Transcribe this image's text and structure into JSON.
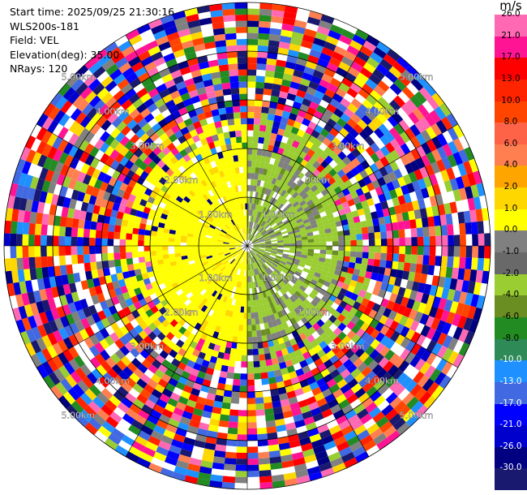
{
  "info": {
    "start_time": "Start time: 2025/09/25 21:30:16",
    "instrument": "WLS200s-181",
    "field": "Field: VEL",
    "elevation": "Elevation(deg): 35.00",
    "nrays": "NRays: 120"
  },
  "colorbar": {
    "unit": "m/s",
    "tick_labels": [
      "26.0",
      "21.0",
      "17.0",
      "13.0",
      "10.0",
      "8.0",
      "6.0",
      "4.0",
      "2.0",
      "1.0",
      "0.0",
      "-1.0",
      "-2.0",
      "-4.0",
      "-6.0",
      "-8.0",
      "-10.0",
      "-13.0",
      "-17.0",
      "-21.0",
      "-26.0",
      "-30.0"
    ],
    "colors": [
      "#ff69b4",
      "#ff1493",
      "#ff0000",
      "#ff2400",
      "#ff4500",
      "#ff6347",
      "#ff7f50",
      "#ffa500",
      "#ffd700",
      "#ffff00",
      "#808080",
      "#696969",
      "#9acd32",
      "#6b8e23",
      "#228b22",
      "#2e8b57",
      "#1e90ff",
      "#4169e1",
      "#0000ff",
      "#0000cd",
      "#000080",
      "#191970"
    ]
  },
  "range_rings": {
    "labels": [
      "1.00km",
      "2.00km",
      "3.00km",
      "4.00km",
      "5.00km"
    ]
  },
  "colors": {
    "approaching_zone": "#ffff00",
    "receding_zone": "#9acd32",
    "ring_line": "#000000"
  }
}
